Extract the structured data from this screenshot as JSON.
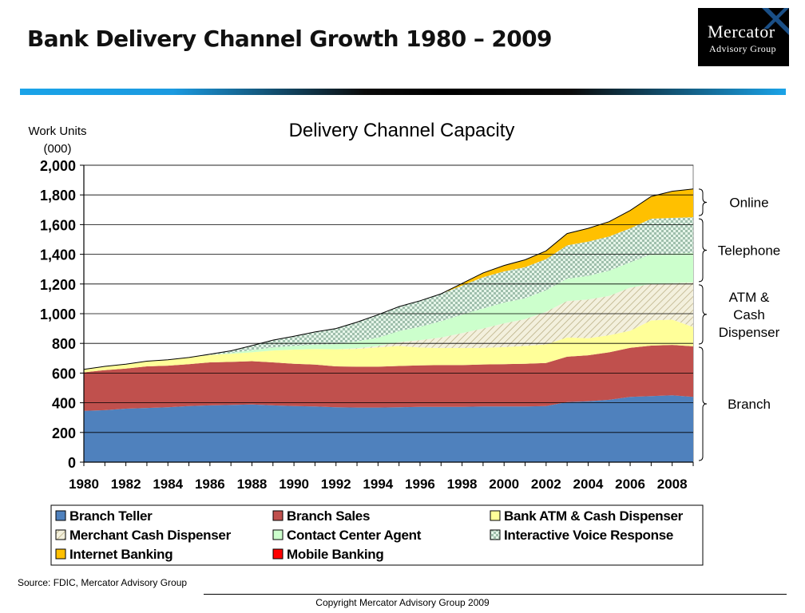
{
  "slide": {
    "title": "Bank Delivery Channel Growth 1980 – 2009",
    "logo": {
      "line1": "Mercator",
      "line2": "Advisory Group"
    },
    "source": "Source: FDIC, Mercator Advisory Group",
    "copyright": "Copyright Mercator Advisory Group 2009"
  },
  "colors": {
    "accent_bar": "#1aa3e8"
  },
  "chart_data": {
    "type": "area",
    "stacked": true,
    "title": "Delivery Channel Capacity",
    "ylabel_line1": "Work Units",
    "ylabel_line2": "(000)",
    "xlabel": "",
    "ylim": [
      0,
      2000
    ],
    "yticks": [
      "0",
      "200",
      "400",
      "600",
      "800",
      "1,000",
      "1,200",
      "1,400",
      "1,600",
      "1,800",
      "2,000"
    ],
    "xtick_labels": [
      "1980",
      "1982",
      "1984",
      "1986",
      "1988",
      "1990",
      "1992",
      "1994",
      "1996",
      "1998",
      "2000",
      "2002",
      "2004",
      "2006",
      "2008"
    ],
    "grid": "horizontal",
    "legend_position": "bottom",
    "x": [
      1980,
      1981,
      1982,
      1983,
      1984,
      1985,
      1986,
      1987,
      1988,
      1989,
      1990,
      1991,
      1992,
      1993,
      1994,
      1995,
      1996,
      1997,
      1998,
      1999,
      2000,
      2001,
      2002,
      2003,
      2004,
      2005,
      2006,
      2007,
      2008,
      2009
    ],
    "series": [
      {
        "name": "Branch Teller",
        "color": "#4f81bd",
        "pattern": "solid",
        "values": [
          345,
          350,
          360,
          365,
          370,
          378,
          382,
          385,
          388,
          382,
          378,
          375,
          370,
          368,
          368,
          370,
          372,
          372,
          372,
          375,
          375,
          375,
          378,
          405,
          410,
          420,
          440,
          445,
          450,
          440
        ]
      },
      {
        "name": "Branch Sales",
        "color": "#c0504d",
        "pattern": "solid",
        "values": [
          260,
          270,
          270,
          280,
          280,
          282,
          290,
          290,
          292,
          290,
          285,
          282,
          275,
          275,
          275,
          278,
          280,
          282,
          282,
          283,
          285,
          288,
          290,
          305,
          310,
          320,
          330,
          340,
          340,
          340
        ]
      },
      {
        "name": "Bank ATM & Cash Dispenser",
        "color": "#ffff99",
        "pattern": "solid",
        "values": [
          20,
          25,
          30,
          35,
          40,
          45,
          50,
          55,
          60,
          80,
          95,
          105,
          115,
          120,
          130,
          135,
          120,
          115,
          115,
          112,
          115,
          120,
          125,
          130,
          115,
          115,
          115,
          170,
          170,
          130
        ]
      },
      {
        "name": "Merchant Cash Dispenser",
        "color": "#ddd9c3",
        "pattern": "hatch",
        "values": [
          0,
          0,
          0,
          0,
          0,
          0,
          0,
          0,
          0,
          0,
          0,
          0,
          0,
          5,
          10,
          25,
          50,
          70,
          100,
          130,
          160,
          180,
          220,
          245,
          260,
          265,
          290,
          245,
          245,
          300
        ]
      },
      {
        "name": "Contact Center Agent",
        "color": "#ccffcc",
        "pattern": "solid",
        "values": [
          0,
          0,
          0,
          0,
          0,
          0,
          0,
          5,
          15,
          20,
          25,
          30,
          35,
          45,
          55,
          75,
          90,
          110,
          125,
          135,
          140,
          140,
          145,
          150,
          160,
          170,
          170,
          200,
          200,
          200
        ]
      },
      {
        "name": "Interactive Voice Response",
        "color": "#c2dfce",
        "pattern": "check",
        "values": [
          0,
          0,
          0,
          0,
          0,
          0,
          5,
          15,
          30,
          50,
          65,
          85,
          105,
          130,
          155,
          165,
          175,
          185,
          195,
          210,
          210,
          210,
          210,
          225,
          230,
          230,
          230,
          240,
          240,
          240
        ]
      },
      {
        "name": "Internet Banking",
        "color": "#ffc000",
        "pattern": "solid",
        "values": [
          0,
          0,
          0,
          0,
          0,
          0,
          0,
          0,
          0,
          0,
          0,
          0,
          0,
          0,
          0,
          0,
          0,
          0,
          15,
          30,
          40,
          50,
          55,
          80,
          90,
          100,
          120,
          150,
          180,
          190
        ]
      },
      {
        "name": "Mobile Banking",
        "color": "#ff0000",
        "pattern": "solid",
        "values": [
          0,
          0,
          0,
          0,
          0,
          0,
          0,
          0,
          0,
          0,
          0,
          0,
          0,
          0,
          0,
          0,
          0,
          0,
          0,
          0,
          0,
          0,
          0,
          0,
          0,
          0,
          0,
          0,
          0,
          0
        ]
      }
    ],
    "groups": [
      {
        "label": "Online",
        "range": [
          1650,
          1850
        ]
      },
      {
        "label": "Telephone",
        "range": [
          1205,
          1650
        ]
      },
      {
        "label": "ATM &\nCash\nDispenser",
        "range": [
          785,
          1205
        ]
      },
      {
        "label": "Branch",
        "range": [
          0,
          785
        ]
      }
    ]
  }
}
